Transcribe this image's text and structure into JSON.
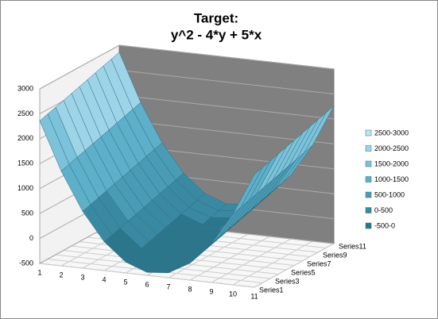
{
  "chart_data": {
    "type": "surface3d",
    "title": "Target:",
    "subtitle": "y^2 - 4*y + 5*x",
    "categories": [
      "1",
      "2",
      "3",
      "4",
      "5",
      "6",
      "7",
      "8",
      "9",
      "10",
      "11"
    ],
    "zlim": [
      -500,
      3000
    ],
    "zticks": [
      -500,
      0,
      500,
      1000,
      1500,
      2000,
      2500,
      3000
    ],
    "legend": [
      {
        "label": "2500-3000",
        "from": 2500,
        "to": 3000,
        "color": "#bfe4f2"
      },
      {
        "label": "2000-2500",
        "from": 2000,
        "to": 2500,
        "color": "#9dd4e8"
      },
      {
        "label": "1500-2000",
        "from": 1500,
        "to": 2000,
        "color": "#7cc2da"
      },
      {
        "label": "1000-1500",
        "from": 1000,
        "to": 1500,
        "color": "#5eafc9"
      },
      {
        "label": "500-1000",
        "from": 500,
        "to": 1000,
        "color": "#4a9bb5"
      },
      {
        "label": "0-500",
        "from": 0,
        "to": 500,
        "color": "#3a89a2"
      },
      {
        "label": "-500-0",
        "from": -500,
        "to": 0,
        "color": "#2c768c"
      }
    ],
    "series": [
      {
        "name": "Series1",
        "values": [
          2359,
          1399,
          639,
          79,
          -281,
          -441,
          -401,
          -161,
          279,
          919,
          1759
        ]
      },
      {
        "name": null,
        "values": [
          2409,
          1449,
          689,
          129,
          -231,
          -391,
          -351,
          -111,
          329,
          969,
          1809
        ]
      },
      {
        "name": "Series3",
        "values": [
          2459,
          1499,
          739,
          179,
          -181,
          -341,
          -301,
          -61,
          379,
          1019,
          1859
        ]
      },
      {
        "name": null,
        "values": [
          2509,
          1549,
          789,
          229,
          -131,
          -291,
          -251,
          -11,
          429,
          1069,
          1909
        ]
      },
      {
        "name": "Series5",
        "values": [
          2559,
          1599,
          839,
          279,
          -81,
          -241,
          -201,
          39,
          479,
          1119,
          1959
        ]
      },
      {
        "name": null,
        "values": [
          2609,
          1649,
          889,
          329,
          -31,
          -191,
          -151,
          89,
          529,
          1169,
          2009
        ]
      },
      {
        "name": "Series7",
        "values": [
          2659,
          1699,
          939,
          379,
          19,
          -141,
          -101,
          139,
          579,
          1219,
          2059
        ]
      },
      {
        "name": null,
        "values": [
          2709,
          1749,
          989,
          429,
          69,
          -91,
          -51,
          189,
          629,
          1269,
          2109
        ]
      },
      {
        "name": "Series9",
        "values": [
          2759,
          1799,
          1039,
          479,
          119,
          -41,
          -1,
          239,
          679,
          1319,
          2159
        ]
      },
      {
        "name": null,
        "values": [
          2809,
          1849,
          1089,
          529,
          169,
          9,
          49,
          289,
          729,
          1369,
          2209
        ]
      },
      {
        "name": "Series11",
        "values": [
          2859,
          1899,
          1139,
          579,
          219,
          59,
          99,
          339,
          779,
          1419,
          2259
        ]
      }
    ]
  }
}
